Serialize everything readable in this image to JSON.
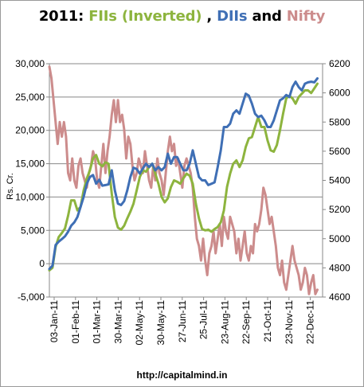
{
  "chart_data": {
    "type": "line",
    "title": {
      "prefix": "2011: ",
      "fii": "FIIs (Inverted)",
      "sep1": " , ",
      "dii": "DIIs",
      "sep2": " and ",
      "nifty": "Nifty"
    },
    "ylabel": "Rs. Cr.",
    "source": "http://capitalmind.in",
    "left_axis": {
      "ylim": [
        -5000,
        30000
      ],
      "ticks": [
        "-5,000",
        "0",
        "5,000",
        "10,000",
        "15,000",
        "20,000",
        "25,000",
        "30,000"
      ]
    },
    "right_axis": {
      "ylim": [
        4600,
        6200
      ],
      "ticks": [
        "4600",
        "4800",
        "5000",
        "5200",
        "5400",
        "5600",
        "5800",
        "6000",
        "6200"
      ]
    },
    "x_ticks": [
      "03-Jan-11",
      "01-Feb-11",
      "01-Mar-11",
      "30-Mar-11",
      "02-May-11",
      "30-May-11",
      "27-Jun-11",
      "25-Jul-11",
      "23-Aug-11",
      "22-Sep-11",
      "21-Oct-11",
      "23-Nov-11",
      "22-Dec-11"
    ],
    "grid": true,
    "colors": {
      "fii": "#8db43e",
      "dii": "#3f6fb5",
      "nifty": "#cc8c8c",
      "title_black": "#000000"
    },
    "series": [
      {
        "name": "FIIs (Inverted)",
        "axis": "left",
        "color": "#8db43e",
        "points": [
          [
            0,
            -1000
          ],
          [
            3,
            -600
          ],
          [
            6,
            2500
          ],
          [
            9,
            4000
          ],
          [
            12,
            4600
          ],
          [
            15,
            5300
          ],
          [
            18,
            7200
          ],
          [
            21,
            9500
          ],
          [
            24,
            9500
          ],
          [
            27,
            8000
          ],
          [
            30,
            8500
          ],
          [
            33,
            11000
          ],
          [
            36,
            12800
          ],
          [
            39,
            14000
          ],
          [
            42,
            15800
          ],
          [
            45,
            16300
          ],
          [
            48,
            15000
          ],
          [
            51,
            14600
          ],
          [
            54,
            15200
          ],
          [
            57,
            15000
          ],
          [
            60,
            10500
          ],
          [
            63,
            7000
          ],
          [
            66,
            5400
          ],
          [
            69,
            5100
          ],
          [
            72,
            5700
          ],
          [
            75,
            6800
          ],
          [
            78,
            7800
          ],
          [
            81,
            9000
          ],
          [
            84,
            11000
          ],
          [
            87,
            13000
          ],
          [
            90,
            14000
          ],
          [
            93,
            13800
          ],
          [
            96,
            14500
          ],
          [
            99,
            15000
          ],
          [
            102,
            13500
          ],
          [
            105,
            12000
          ],
          [
            108,
            10000
          ],
          [
            111,
            9200
          ],
          [
            114,
            9800
          ],
          [
            117,
            11500
          ],
          [
            120,
            12500
          ],
          [
            123,
            12300
          ],
          [
            126,
            12000
          ],
          [
            129,
            12800
          ],
          [
            132,
            13500
          ],
          [
            135,
            13200
          ],
          [
            138,
            12000
          ],
          [
            141,
            9000
          ],
          [
            144,
            6800
          ],
          [
            147,
            5200
          ],
          [
            150,
            5000
          ],
          [
            153,
            5100
          ],
          [
            156,
            4800
          ],
          [
            159,
            5200
          ],
          [
            162,
            5500
          ],
          [
            165,
            6200
          ],
          [
            168,
            8000
          ],
          [
            171,
            11500
          ],
          [
            174,
            13500
          ],
          [
            177,
            15000
          ],
          [
            180,
            15500
          ],
          [
            183,
            14500
          ],
          [
            186,
            15500
          ],
          [
            189,
            17500
          ],
          [
            192,
            18800
          ],
          [
            195,
            19000
          ],
          [
            198,
            20500
          ],
          [
            201,
            22000
          ],
          [
            204,
            20500
          ],
          [
            207,
            20500
          ],
          [
            210,
            18500
          ],
          [
            213,
            17000
          ],
          [
            216,
            16800
          ],
          [
            219,
            17800
          ],
          [
            222,
            20000
          ],
          [
            225,
            22500
          ],
          [
            228,
            24800
          ],
          [
            231,
            25200
          ],
          [
            234,
            24800
          ],
          [
            237,
            24000
          ],
          [
            240,
            25000
          ],
          [
            243,
            25500
          ],
          [
            246,
            26000
          ],
          [
            249,
            26000
          ],
          [
            252,
            25600
          ],
          [
            255,
            26300
          ],
          [
            258,
            27000
          ]
        ]
      },
      {
        "name": "DIIs",
        "axis": "left",
        "color": "#3f6fb5",
        "points": [
          [
            0,
            -800
          ],
          [
            3,
            -300
          ],
          [
            6,
            2800
          ],
          [
            9,
            3300
          ],
          [
            12,
            3700
          ],
          [
            15,
            4100
          ],
          [
            18,
            4800
          ],
          [
            21,
            5700
          ],
          [
            24,
            6200
          ],
          [
            27,
            7000
          ],
          [
            30,
            8500
          ],
          [
            33,
            10000
          ],
          [
            36,
            12000
          ],
          [
            39,
            13000
          ],
          [
            42,
            13300
          ],
          [
            45,
            12000
          ],
          [
            48,
            12600
          ],
          [
            51,
            11700
          ],
          [
            54,
            11800
          ],
          [
            57,
            11900
          ],
          [
            60,
            14000
          ],
          [
            63,
            11000
          ],
          [
            66,
            9000
          ],
          [
            69,
            8800
          ],
          [
            72,
            9400
          ],
          [
            75,
            11000
          ],
          [
            78,
            13000
          ],
          [
            81,
            14400
          ],
          [
            84,
            14200
          ],
          [
            87,
            13500
          ],
          [
            90,
            14300
          ],
          [
            93,
            15000
          ],
          [
            96,
            14500
          ],
          [
            99,
            15000
          ],
          [
            102,
            14000
          ],
          [
            105,
            14500
          ],
          [
            108,
            14000
          ],
          [
            111,
            14500
          ],
          [
            114,
            16500
          ],
          [
            117,
            15000
          ],
          [
            120,
            16000
          ],
          [
            123,
            16000
          ],
          [
            126,
            15000
          ],
          [
            129,
            14000
          ],
          [
            132,
            14000
          ],
          [
            135,
            15000
          ],
          [
            138,
            17000
          ],
          [
            141,
            15000
          ],
          [
            144,
            13000
          ],
          [
            147,
            12500
          ],
          [
            150,
            12500
          ],
          [
            153,
            11800
          ],
          [
            156,
            12000
          ],
          [
            159,
            12200
          ],
          [
            162,
            14500
          ],
          [
            165,
            17000
          ],
          [
            168,
            20500
          ],
          [
            171,
            20500
          ],
          [
            174,
            21000
          ],
          [
            177,
            22500
          ],
          [
            180,
            23000
          ],
          [
            183,
            22500
          ],
          [
            186,
            24000
          ],
          [
            189,
            25500
          ],
          [
            192,
            25200
          ],
          [
            195,
            24000
          ],
          [
            198,
            22500
          ],
          [
            201,
            22000
          ],
          [
            204,
            22200
          ],
          [
            207,
            21500
          ],
          [
            210,
            20500
          ],
          [
            213,
            20500
          ],
          [
            216,
            21500
          ],
          [
            219,
            23000
          ],
          [
            222,
            24500
          ],
          [
            225,
            24800
          ],
          [
            228,
            25300
          ],
          [
            231,
            25000
          ],
          [
            234,
            26500
          ],
          [
            237,
            27300
          ],
          [
            240,
            26500
          ],
          [
            243,
            26000
          ],
          [
            246,
            27000
          ],
          [
            249,
            27200
          ],
          [
            252,
            27300
          ],
          [
            255,
            27200
          ],
          [
            258,
            27800
          ]
        ]
      },
      {
        "name": "Nifty",
        "axis": "right",
        "color": "#cc8c8c",
        "points": [
          [
            0,
            6180
          ],
          [
            2,
            6100
          ],
          [
            4,
            5950
          ],
          [
            6,
            5800
          ],
          [
            8,
            5650
          ],
          [
            10,
            5800
          ],
          [
            12,
            5700
          ],
          [
            14,
            5800
          ],
          [
            16,
            5700
          ],
          [
            18,
            5450
          ],
          [
            20,
            5400
          ],
          [
            22,
            5550
          ],
          [
            24,
            5400
          ],
          [
            26,
            5350
          ],
          [
            28,
            5500
          ],
          [
            30,
            5550
          ],
          [
            32,
            5450
          ],
          [
            34,
            5400
          ],
          [
            36,
            5350
          ],
          [
            38,
            5450
          ],
          [
            40,
            5500
          ],
          [
            42,
            5600
          ],
          [
            44,
            5550
          ],
          [
            46,
            5400
          ],
          [
            48,
            5350
          ],
          [
            50,
            5500
          ],
          [
            52,
            5650
          ],
          [
            54,
            5450
          ],
          [
            56,
            5600
          ],
          [
            58,
            5700
          ],
          [
            60,
            5850
          ],
          [
            62,
            5950
          ],
          [
            64,
            5800
          ],
          [
            66,
            5950
          ],
          [
            68,
            5800
          ],
          [
            70,
            5850
          ],
          [
            72,
            5750
          ],
          [
            74,
            5550
          ],
          [
            76,
            5700
          ],
          [
            78,
            5650
          ],
          [
            80,
            5500
          ],
          [
            82,
            5400
          ],
          [
            84,
            5450
          ],
          [
            86,
            5550
          ],
          [
            88,
            5500
          ],
          [
            90,
            5450
          ],
          [
            92,
            5600
          ],
          [
            94,
            5500
          ],
          [
            96,
            5400
          ],
          [
            98,
            5350
          ],
          [
            100,
            5500
          ],
          [
            102,
            5400
          ],
          [
            104,
            5550
          ],
          [
            106,
            5450
          ],
          [
            108,
            5400
          ],
          [
            110,
            5300
          ],
          [
            112,
            5450
          ],
          [
            114,
            5600
          ],
          [
            116,
            5700
          ],
          [
            118,
            5600
          ],
          [
            120,
            5650
          ],
          [
            122,
            5500
          ],
          [
            124,
            5550
          ],
          [
            126,
            5450
          ],
          [
            128,
            5350
          ],
          [
            130,
            5500
          ],
          [
            132,
            5550
          ],
          [
            134,
            5500
          ],
          [
            136,
            5450
          ],
          [
            138,
            5350
          ],
          [
            140,
            5150
          ],
          [
            142,
            5000
          ],
          [
            144,
            4950
          ],
          [
            146,
            4850
          ],
          [
            148,
            5000
          ],
          [
            150,
            4850
          ],
          [
            152,
            4750
          ],
          [
            154,
            4900
          ],
          [
            156,
            4950
          ],
          [
            158,
            5050
          ],
          [
            160,
            4900
          ],
          [
            162,
            5000
          ],
          [
            164,
            5100
          ],
          [
            166,
            4950
          ],
          [
            168,
            5150
          ],
          [
            170,
            5050
          ],
          [
            172,
            5000
          ],
          [
            174,
            5150
          ],
          [
            176,
            5100
          ],
          [
            178,
            5050
          ],
          [
            180,
            4900
          ],
          [
            182,
            5000
          ],
          [
            184,
            4850
          ],
          [
            186,
            4950
          ],
          [
            188,
            5050
          ],
          [
            190,
            4900
          ],
          [
            192,
            4850
          ],
          [
            194,
            4950
          ],
          [
            196,
            4900
          ],
          [
            198,
            5100
          ],
          [
            200,
            5050
          ],
          [
            202,
            5100
          ],
          [
            204,
            5200
          ],
          [
            206,
            5350
          ],
          [
            208,
            5300
          ],
          [
            210,
            5200
          ],
          [
            212,
            5100
          ],
          [
            214,
            5150
          ],
          [
            216,
            5050
          ],
          [
            218,
            4950
          ],
          [
            220,
            4800
          ],
          [
            222,
            4750
          ],
          [
            224,
            4850
          ],
          [
            226,
            4700
          ],
          [
            228,
            4650
          ],
          [
            230,
            4750
          ],
          [
            232,
            4850
          ],
          [
            234,
            4950
          ],
          [
            236,
            4850
          ],
          [
            238,
            4800
          ],
          [
            240,
            4750
          ],
          [
            242,
            4650
          ],
          [
            244,
            4700
          ],
          [
            246,
            4800
          ],
          [
            248,
            4750
          ],
          [
            250,
            4620
          ],
          [
            252,
            4700
          ],
          [
            254,
            4750
          ],
          [
            256,
            4620
          ],
          [
            258,
            4650
          ]
        ]
      }
    ]
  }
}
